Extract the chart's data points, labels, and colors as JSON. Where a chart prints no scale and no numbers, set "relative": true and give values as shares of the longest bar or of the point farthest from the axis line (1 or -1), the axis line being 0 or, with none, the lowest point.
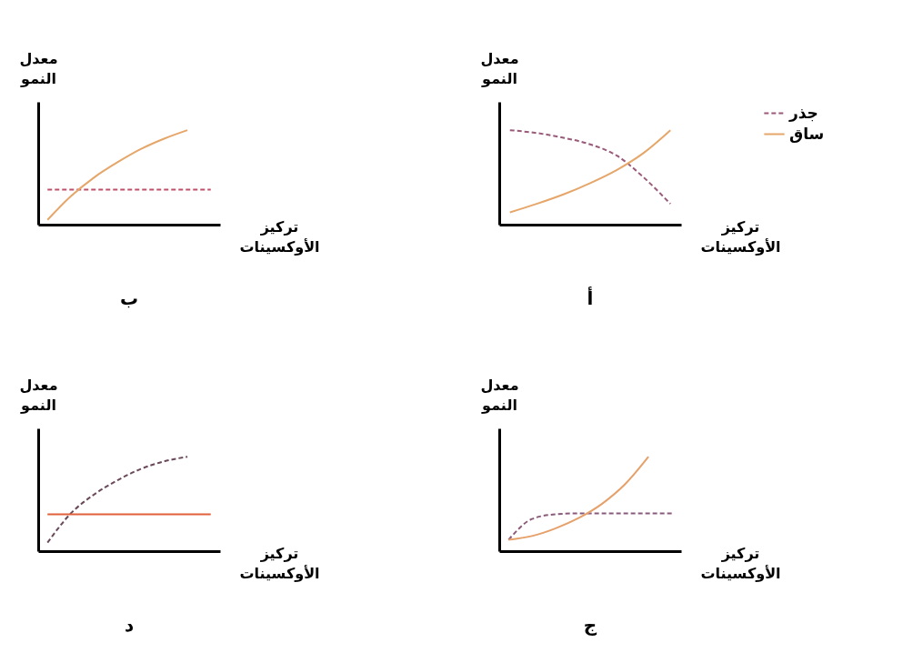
{
  "chart_data": [
    {
      "type": "line",
      "title": "أ",
      "xlabel": "تركيز الأوكسينات",
      "ylabel": "معدل النمو",
      "relative": true,
      "legend": "top right",
      "categories": [
        null,
        null,
        null,
        null,
        null,
        null,
        null
      ],
      "series": [
        {
          "name": "جذر",
          "color": "#9a5a7a",
          "line_style": "dashed",
          "values": [
            1.0,
            0.97,
            0.92,
            0.85,
            0.73,
            0.5,
            0.22
          ]
        },
        {
          "name": "ساق",
          "color": "#e6a66a",
          "line_style": "solid",
          "values": [
            0.13,
            0.22,
            0.32,
            0.44,
            0.58,
            0.76,
            1.0
          ]
        }
      ]
    },
    {
      "type": "line",
      "title": "ب",
      "xlabel": "تركيز الأوكسينات",
      "ylabel": "معدل النمو",
      "relative": true,
      "categories": [
        null,
        null,
        null,
        null,
        null,
        null,
        null,
        null
      ],
      "series": [
        {
          "color": "#c0506a",
          "line_style": "dashed",
          "values": [
            0.37,
            0.37,
            0.37,
            0.37,
            0.37,
            0.37,
            0.37,
            0.37
          ]
        },
        {
          "color": "#e6a66a",
          "line_style": "solid",
          "values": [
            0.05,
            0.3,
            0.5,
            0.66,
            0.8,
            0.91,
            1.0,
            null
          ]
        }
      ]
    },
    {
      "type": "line",
      "title": "ج",
      "xlabel": "تركيز الأوكسينات",
      "ylabel": "معدل النمو",
      "relative": true,
      "categories": [
        null,
        null,
        null,
        null,
        null,
        null,
        null,
        null
      ],
      "series": [
        {
          "color": "#8a5a7a",
          "line_style": "dashed",
          "values": [
            0.12,
            0.34,
            0.39,
            0.4,
            0.4,
            0.4,
            0.4,
            0.4
          ]
        },
        {
          "color": "#e6a06a",
          "line_style": "solid",
          "values": [
            0.12,
            0.16,
            0.24,
            0.35,
            0.5,
            0.71,
            1.0,
            null
          ]
        }
      ]
    },
    {
      "type": "line",
      "title": "د",
      "xlabel": "تركيز الأوكسينات",
      "ylabel": "معدل النمو",
      "relative": true,
      "categories": [
        null,
        null,
        null,
        null,
        null,
        null,
        null,
        null
      ],
      "series": [
        {
          "color": "#6a4a5a",
          "line_style": "dashed",
          "values": [
            0.09,
            0.4,
            0.6,
            0.75,
            0.87,
            0.95,
            1.0,
            null
          ]
        },
        {
          "color": "#e0603a",
          "line_style": "solid",
          "values": [
            0.39,
            0.39,
            0.39,
            0.39,
            0.39,
            0.39,
            0.39,
            0.39
          ]
        }
      ]
    }
  ]
}
